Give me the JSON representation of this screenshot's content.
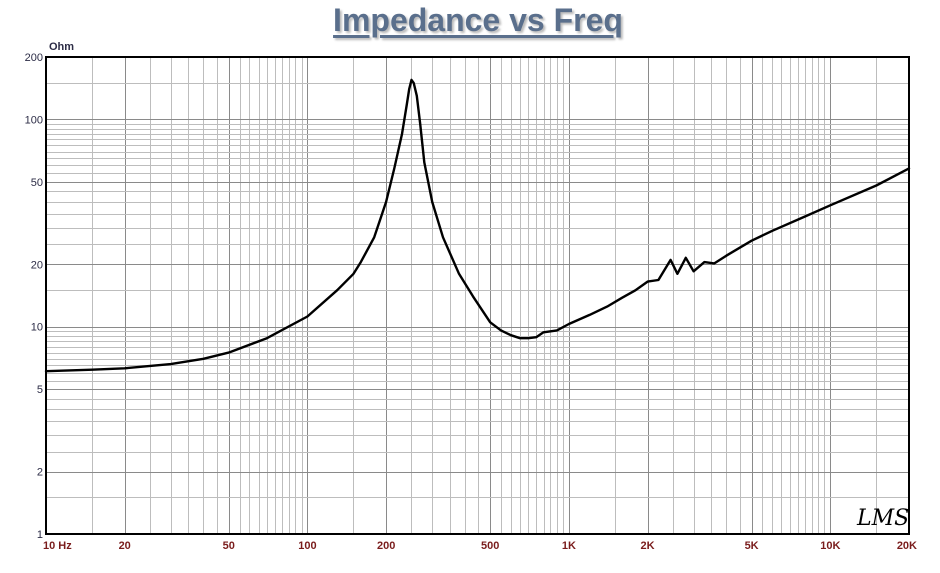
{
  "chart_data": {
    "type": "line",
    "title": "Impedance vs Freq",
    "y_unit": "Ohm",
    "x_scale": "log",
    "y_scale": "log",
    "xlim": [
      10,
      20000
    ],
    "ylim": [
      1,
      200
    ],
    "x_ticks": [
      {
        "value": 10,
        "label": "10  Hz"
      },
      {
        "value": 20,
        "label": "20"
      },
      {
        "value": 50,
        "label": "50"
      },
      {
        "value": 100,
        "label": "100"
      },
      {
        "value": 200,
        "label": "200"
      },
      {
        "value": 500,
        "label": "500"
      },
      {
        "value": 1000,
        "label": "1K"
      },
      {
        "value": 2000,
        "label": "2K"
      },
      {
        "value": 5000,
        "label": "5K"
      },
      {
        "value": 10000,
        "label": "10K"
      },
      {
        "value": 20000,
        "label": "20K"
      }
    ],
    "y_ticks": [
      {
        "value": 200,
        "label": "200"
      },
      {
        "value": 100,
        "label": "100"
      },
      {
        "value": 50,
        "label": "50"
      },
      {
        "value": 20,
        "label": "20"
      },
      {
        "value": 10,
        "label": "10"
      },
      {
        "value": 5,
        "label": "5"
      },
      {
        "value": 2,
        "label": "2"
      },
      {
        "value": 1,
        "label": "1"
      }
    ],
    "grid": true,
    "series": [
      {
        "color": "#000000",
        "x": [
          10,
          15,
          20,
          30,
          40,
          50,
          70,
          100,
          130,
          150,
          160,
          180,
          200,
          215,
          230,
          240,
          245,
          250,
          255,
          262,
          270,
          280,
          300,
          330,
          380,
          430,
          500,
          550,
          600,
          650,
          700,
          750,
          800,
          900,
          1000,
          1200,
          1400,
          1600,
          1800,
          2000,
          2200,
          2450,
          2600,
          2800,
          3000,
          3300,
          3600,
          4000,
          5000,
          6000,
          8000,
          10000,
          15000,
          20000
        ],
        "y": [
          6.1,
          6.2,
          6.3,
          6.6,
          7.0,
          7.5,
          8.8,
          11.2,
          15.0,
          18.0,
          20.5,
          27.0,
          40.0,
          58.0,
          85.0,
          118.0,
          140.0,
          155.0,
          150.0,
          130.0,
          95.0,
          62.0,
          40.0,
          27.0,
          18.0,
          14.0,
          10.5,
          9.6,
          9.1,
          8.8,
          8.8,
          8.9,
          9.4,
          9.6,
          10.3,
          11.4,
          12.5,
          13.8,
          15.0,
          16.5,
          16.8,
          21.0,
          18.0,
          21.5,
          18.5,
          20.5,
          20.2,
          22.0,
          26.0,
          29.0,
          34.0,
          38.5,
          48.0,
          58.0
        ]
      }
    ]
  },
  "logo_text": "LMS"
}
